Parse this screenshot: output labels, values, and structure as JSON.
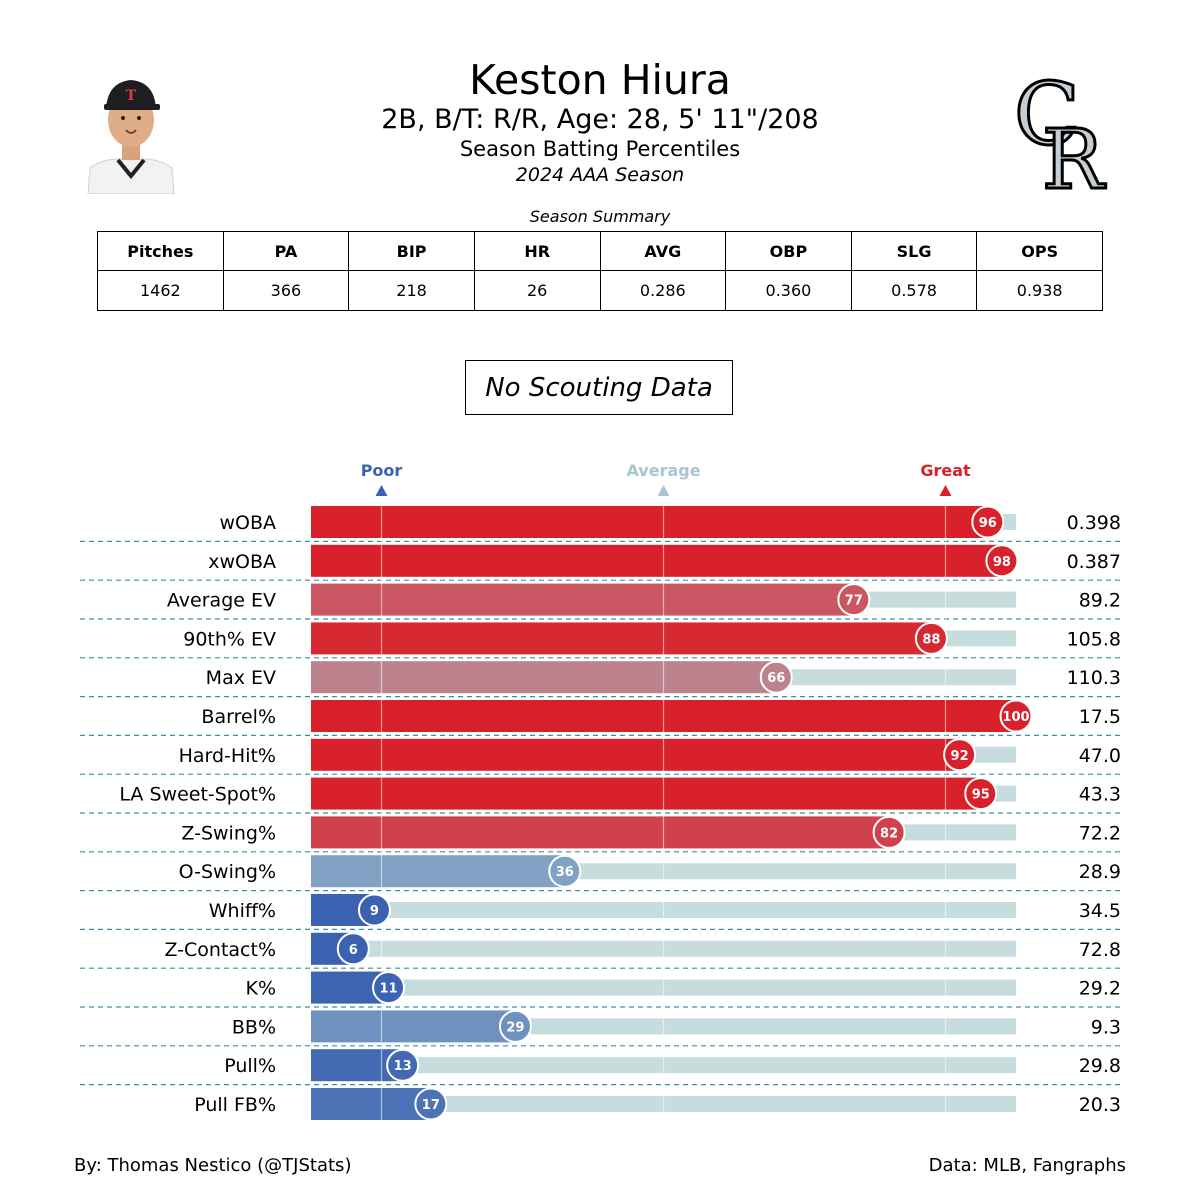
{
  "header": {
    "player_name": "Keston Hiura",
    "player_info": "2B, B/T: R/R, Age: 28, 5' 11\"/208",
    "report_title": "Season Batting Percentiles",
    "season_label": "2024 AAA Season"
  },
  "summary": {
    "caption": "Season Summary",
    "columns": [
      "Pitches",
      "PA",
      "BIP",
      "HR",
      "AVG",
      "OBP",
      "SLG",
      "OPS"
    ],
    "values": [
      "1462",
      "366",
      "218",
      "26",
      "0.286",
      "0.360",
      "0.578",
      "0.938"
    ]
  },
  "scouting_note": "No Scouting Data",
  "colors": {
    "great": "#d8212a",
    "average": "#a9c5d0",
    "poor": "#3a62b0",
    "track": "#c7dcdd",
    "divider": "#3a8fa0"
  },
  "chart_data": {
    "type": "bar",
    "orientation": "horizontal",
    "xlim": [
      0,
      100
    ],
    "markers": [
      {
        "label": "Poor",
        "value": 10
      },
      {
        "label": "Average",
        "value": 50
      },
      {
        "label": "Great",
        "value": 90
      }
    ],
    "metrics": [
      {
        "name": "wOBA",
        "percentile": 96,
        "value": "0.398"
      },
      {
        "name": "xwOBA",
        "percentile": 98,
        "value": "0.387"
      },
      {
        "name": "Average EV",
        "percentile": 77,
        "value": "89.2"
      },
      {
        "name": "90th% EV",
        "percentile": 88,
        "value": "105.8"
      },
      {
        "name": "Max EV",
        "percentile": 66,
        "value": "110.3"
      },
      {
        "name": "Barrel%",
        "percentile": 100,
        "value": "17.5"
      },
      {
        "name": "Hard-Hit%",
        "percentile": 92,
        "value": "47.0"
      },
      {
        "name": "LA Sweet-Spot%",
        "percentile": 95,
        "value": "43.3"
      },
      {
        "name": "Z-Swing%",
        "percentile": 82,
        "value": "72.2"
      },
      {
        "name": "O-Swing%",
        "percentile": 36,
        "value": "28.9"
      },
      {
        "name": "Whiff%",
        "percentile": 9,
        "value": "34.5"
      },
      {
        "name": "Z-Contact%",
        "percentile": 6,
        "value": "72.8"
      },
      {
        "name": "K%",
        "percentile": 11,
        "value": "29.2"
      },
      {
        "name": "BB%",
        "percentile": 29,
        "value": "9.3"
      },
      {
        "name": "Pull%",
        "percentile": 13,
        "value": "29.8"
      },
      {
        "name": "Pull FB%",
        "percentile": 17,
        "value": "20.3"
      }
    ]
  },
  "footer": {
    "credit_left": "By: Thomas Nestico (@TJStats)",
    "credit_right": "Data: MLB, Fangraphs"
  }
}
